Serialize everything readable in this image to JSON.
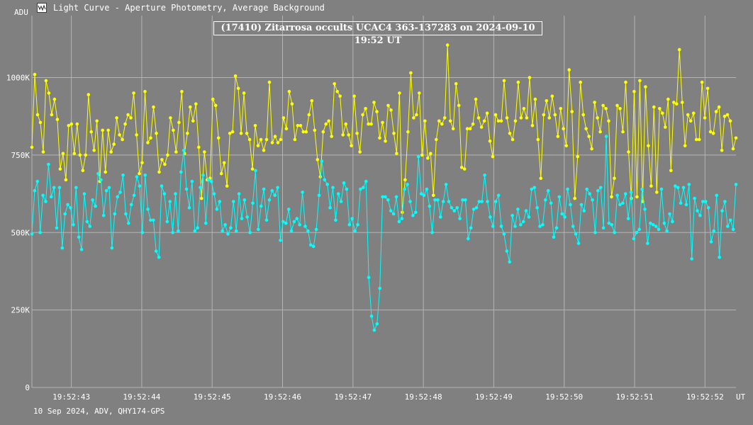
{
  "window": {
    "title": "Light Curve - Aperture Photometry, Average Background",
    "icon": "light-curve-app-icon"
  },
  "footer": "10 Sep 2024, ADV, QHY174-GPS",
  "colors": {
    "background": "#808080",
    "grid": "#b4b4b4",
    "text": "#ffffff",
    "target": "#ffff00",
    "comparison": "#00ffff"
  },
  "chart_data": {
    "type": "line",
    "title": "(17410) Zitarrosa occults UCAC4 363-137283 on 2024-09-10  19:52 UT",
    "ylabel": "ADU",
    "xlabel": "UT",
    "ylim": [
      0,
      1200000
    ],
    "xlim": [
      0,
      250
    ],
    "y_ticks": [
      {
        "value": 0,
        "label": "0"
      },
      {
        "value": 250000,
        "label": "250K"
      },
      {
        "value": 500000,
        "label": "500K"
      },
      {
        "value": 750000,
        "label": "750K"
      },
      {
        "value": 1000000,
        "label": "1000K"
      }
    ],
    "x_ticks": [
      {
        "value": 14,
        "label": "19:52:43"
      },
      {
        "value": 39,
        "label": "19:52:44"
      },
      {
        "value": 64,
        "label": "19:52:45"
      },
      {
        "value": 89,
        "label": "19:52:46"
      },
      {
        "value": 114,
        "label": "19:52:47"
      },
      {
        "value": 139,
        "label": "19:52:48"
      },
      {
        "value": 164,
        "label": "19:52:49"
      },
      {
        "value": 189,
        "label": "19:52:50"
      },
      {
        "value": 214,
        "label": "19:52:51"
      },
      {
        "value": 239,
        "label": "19:52:52"
      }
    ],
    "grid": true,
    "series": [
      {
        "color": "#ffff00",
        "values": [
          775,
          1010,
          880,
          855,
          760,
          990,
          950,
          880,
          930,
          865,
          705,
          755,
          670,
          845,
          850,
          755,
          850,
          750,
          700,
          750,
          945,
          825,
          765,
          860,
          665,
          830,
          695,
          830,
          760,
          785,
          870,
          815,
          800,
          850,
          880,
          870,
          950,
          815,
          690,
          725,
          955,
          790,
          805,
          905,
          820,
          695,
          735,
          720,
          750,
          870,
          830,
          760,
          855,
          955,
          755,
          820,
          905,
          860,
          915,
          775,
          610,
          760,
          670,
          675,
          930,
          910,
          805,
          690,
          725,
          650,
          820,
          825,
          1005,
          965,
          820,
          950,
          820,
          800,
          705,
          845,
          780,
          800,
          765,
          800,
          985,
          790,
          810,
          790,
          800,
          870,
          835,
          955,
          915,
          800,
          845,
          845,
          825,
          825,
          880,
          925,
          830,
          735,
          680,
          825,
          850,
          860,
          810,
          980,
          955,
          940,
          815,
          850,
          815,
          780,
          940,
          820,
          760,
          880,
          900,
          850,
          850,
          920,
          890,
          805,
          855,
          795,
          910,
          895,
          820,
          755,
          950,
          565,
          670,
          825,
          1015,
          870,
          880,
          950,
          750,
          860,
          740,
          755,
          620,
          800,
          860,
          850,
          870,
          1105,
          860,
          835,
          980,
          910,
          710,
          705,
          835,
          835,
          850,
          930,
          870,
          840,
          860,
          885,
          795,
          745,
          880,
          860,
          860,
          990,
          870,
          820,
          800,
          860,
          985,
          870,
          900,
          870,
          1000,
          845,
          930,
          800,
          675,
          880,
          925,
          870,
          940,
          880,
          810,
          900,
          835,
          780,
          1025,
          890,
          610,
          745,
          985,
          880,
          835,
          810,
          770,
          920,
          870,
          825,
          910,
          900,
          860,
          615,
          675,
          910,
          900,
          825,
          985,
          760,
          610,
          955,
          615,
          990,
          600,
          970,
          780,
          650,
          905,
          630,
          900,
          885,
          840,
          930,
          700,
          920,
          915,
          1090,
          920,
          780,
          880,
          860,
          885,
          800,
          800,
          985,
          870,
          965,
          825,
          820,
          890,
          905,
          765,
          875,
          880,
          860,
          770,
          805
        ]
      },
      {
        "color": "#00ffff",
        "values": [
          495,
          635,
          665,
          500,
          620,
          600,
          720,
          615,
          645,
          515,
          645,
          450,
          560,
          590,
          580,
          525,
          645,
          485,
          445,
          625,
          535,
          520,
          605,
          585,
          690,
          670,
          555,
          635,
          645,
          450,
          560,
          615,
          630,
          685,
          560,
          530,
          590,
          620,
          680,
          650,
          500,
          685,
          575,
          540,
          540,
          440,
          420,
          650,
          625,
          535,
          600,
          500,
          625,
          505,
          695,
          765,
          640,
          580,
          665,
          505,
          515,
          645,
          685,
          530,
          670,
          665,
          625,
          575,
          600,
          505,
          525,
          495,
          515,
          600,
          505,
          625,
          545,
          605,
          550,
          500,
          595,
          700,
          510,
          585,
          640,
          540,
          605,
          635,
          620,
          645,
          475,
          535,
          530,
          575,
          505,
          535,
          545,
          525,
          630,
          520,
          505,
          460,
          455,
          510,
          620,
          730,
          670,
          655,
          580,
          645,
          540,
          625,
          600,
          660,
          640,
          525,
          545,
          505,
          525,
          640,
          645,
          665,
          355,
          230,
          185,
          205,
          320,
          615,
          615,
          605,
          570,
          560,
          615,
          535,
          545,
          640,
          655,
          600,
          555,
          565,
          745,
          625,
          620,
          640,
          585,
          500,
          605,
          605,
          550,
          600,
          655,
          600,
          580,
          570,
          580,
          545,
          605,
          605,
          480,
          515,
          575,
          580,
          600,
          600,
          685,
          600,
          550,
          520,
          600,
          620,
          520,
          495,
          440,
          405,
          555,
          520,
          575,
          525,
          535,
          570,
          550,
          640,
          645,
          580,
          520,
          525,
          605,
          635,
          595,
          485,
          515,
          615,
          560,
          550,
          640,
          590,
          520,
          495,
          465,
          590,
          570,
          640,
          625,
          605,
          500,
          635,
          645,
          515,
          810,
          530,
          525,
          500,
          620,
          590,
          595,
          625,
          545,
          630,
          480,
          500,
          510,
          640,
          575,
          465,
          530,
          525,
          520,
          510,
          640,
          530,
          505,
          560,
          535,
          650,
          645,
          595,
          645,
          590,
          655,
          415,
          610,
          570,
          555,
          600,
          600,
          580,
          470,
          505,
          620,
          420,
          570,
          600,
          520,
          540,
          510,
          655
        ]
      }
    ]
  }
}
